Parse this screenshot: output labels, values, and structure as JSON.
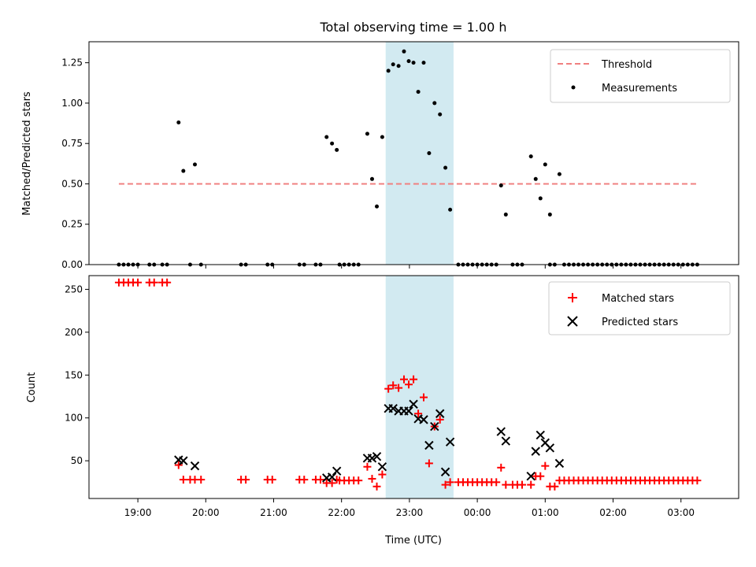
{
  "chart_data": [
    {
      "type": "scatter",
      "title": "Total observing time = 1.00 h",
      "xlabel": "",
      "ylabel": "Matched/Predicted stars",
      "x_unit": "hours since 18:00 UTC",
      "xlim": [
        0.28,
        9.85
      ],
      "ylim": [
        0,
        1.38
      ],
      "yticks": [
        0.0,
        0.25,
        0.5,
        0.75,
        1.0,
        1.25
      ],
      "ytick_labels": [
        "0.00",
        "0.25",
        "0.50",
        "0.75",
        "1.00",
        "1.25"
      ],
      "highlight": {
        "x0": 4.65,
        "x1": 5.65,
        "color": "#add8e6"
      },
      "legend": {
        "position": "top-right",
        "entries": [
          "Threshold",
          "Measurements"
        ]
      },
      "threshold": {
        "name": "Threshold",
        "x0": 0.72,
        "x1": 9.25,
        "y": 0.5,
        "color": "#f08080"
      },
      "series": [
        {
          "name": "Measurements",
          "color": "#000000",
          "points": [
            [
              0.72,
              0
            ],
            [
              0.79,
              0
            ],
            [
              0.86,
              0
            ],
            [
              0.93,
              0
            ],
            [
              1.0,
              0
            ],
            [
              1.17,
              0
            ],
            [
              1.24,
              0
            ],
            [
              1.36,
              0
            ],
            [
              1.43,
              0
            ],
            [
              1.6,
              0.88
            ],
            [
              1.67,
              0.58
            ],
            [
              1.77,
              0
            ],
            [
              1.84,
              0.62
            ],
            [
              1.93,
              0
            ],
            [
              2.52,
              0
            ],
            [
              2.59,
              0
            ],
            [
              2.91,
              0
            ],
            [
              2.98,
              0
            ],
            [
              3.38,
              0
            ],
            [
              3.45,
              0
            ],
            [
              3.62,
              0
            ],
            [
              3.69,
              0
            ],
            [
              3.78,
              0.79
            ],
            [
              3.86,
              0.75
            ],
            [
              3.93,
              0.71
            ],
            [
              3.97,
              0
            ],
            [
              4.04,
              0
            ],
            [
              4.11,
              0
            ],
            [
              4.18,
              0
            ],
            [
              4.25,
              0
            ],
            [
              4.38,
              0.81
            ],
            [
              4.45,
              0.53
            ],
            [
              4.52,
              0.36
            ],
            [
              4.6,
              0.79
            ],
            [
              4.69,
              1.2
            ],
            [
              4.76,
              1.24
            ],
            [
              4.84,
              1.23
            ],
            [
              4.92,
              1.32
            ],
            [
              4.99,
              1.26
            ],
            [
              5.06,
              1.25
            ],
            [
              5.13,
              1.07
            ],
            [
              5.21,
              1.25
            ],
            [
              5.29,
              0.69
            ],
            [
              5.37,
              1.0
            ],
            [
              5.45,
              0.93
            ],
            [
              5.53,
              0.6
            ],
            [
              5.6,
              0.34
            ],
            [
              5.72,
              0
            ],
            [
              5.79,
              0
            ],
            [
              5.86,
              0
            ],
            [
              5.93,
              0
            ],
            [
              6.0,
              0
            ],
            [
              6.07,
              0
            ],
            [
              6.14,
              0
            ],
            [
              6.21,
              0
            ],
            [
              6.28,
              0
            ],
            [
              6.35,
              0.49
            ],
            [
              6.42,
              0.31
            ],
            [
              6.52,
              0
            ],
            [
              6.59,
              0
            ],
            [
              6.66,
              0
            ],
            [
              6.79,
              0.67
            ],
            [
              6.86,
              0.53
            ],
            [
              6.93,
              0.41
            ],
            [
              7.0,
              0.62
            ],
            [
              7.07,
              0.31
            ],
            [
              7.07,
              0
            ],
            [
              7.14,
              0
            ],
            [
              7.21,
              0.56
            ],
            [
              7.28,
              0
            ],
            [
              7.35,
              0
            ],
            [
              7.42,
              0
            ],
            [
              7.49,
              0
            ],
            [
              7.56,
              0
            ],
            [
              7.63,
              0
            ],
            [
              7.7,
              0
            ],
            [
              7.77,
              0
            ],
            [
              7.84,
              0
            ],
            [
              7.91,
              0
            ],
            [
              7.98,
              0
            ],
            [
              8.05,
              0
            ],
            [
              8.12,
              0
            ],
            [
              8.19,
              0
            ],
            [
              8.26,
              0
            ],
            [
              8.33,
              0
            ],
            [
              8.4,
              0
            ],
            [
              8.47,
              0
            ],
            [
              8.54,
              0
            ],
            [
              8.61,
              0
            ],
            [
              8.68,
              0
            ],
            [
              8.75,
              0
            ],
            [
              8.82,
              0
            ],
            [
              8.89,
              0
            ],
            [
              8.96,
              0
            ],
            [
              9.03,
              0
            ],
            [
              9.1,
              0
            ],
            [
              9.17,
              0
            ],
            [
              9.24,
              0
            ]
          ]
        }
      ]
    },
    {
      "type": "scatter",
      "title": "",
      "xlabel": "Time (UTC)",
      "ylabel": "Count",
      "x_unit": "hours since 18:00 UTC",
      "xlim": [
        0.28,
        9.85
      ],
      "ylim": [
        6,
        266
      ],
      "yticks": [
        50,
        100,
        150,
        200,
        250
      ],
      "ytick_labels": [
        "50",
        "100",
        "150",
        "200",
        "250"
      ],
      "xticks": [
        1,
        2,
        3,
        4,
        5,
        6,
        7,
        8,
        9
      ],
      "xtick_labels": [
        "19:00",
        "20:00",
        "21:00",
        "22:00",
        "23:00",
        "00:00",
        "01:00",
        "02:00",
        "03:00"
      ],
      "highlight": {
        "x0": 4.65,
        "x1": 5.65,
        "color": "#add8e6"
      },
      "legend": {
        "position": "top-right",
        "entries": [
          "Matched stars",
          "Predicted stars"
        ]
      },
      "series": [
        {
          "name": "Matched stars",
          "marker": "plus",
          "color": "#ff0000",
          "points": [
            [
              0.72,
              258
            ],
            [
              0.79,
              258
            ],
            [
              0.86,
              258
            ],
            [
              0.93,
              258
            ],
            [
              1.0,
              258
            ],
            [
              1.17,
              258
            ],
            [
              1.24,
              258
            ],
            [
              1.36,
              258
            ],
            [
              1.43,
              258
            ],
            [
              1.6,
              45
            ],
            [
              1.67,
              28
            ],
            [
              1.77,
              28
            ],
            [
              1.84,
              28
            ],
            [
              1.93,
              28
            ],
            [
              2.52,
              28
            ],
            [
              2.59,
              28
            ],
            [
              2.91,
              28
            ],
            [
              2.98,
              28
            ],
            [
              3.38,
              28
            ],
            [
              3.45,
              28
            ],
            [
              3.62,
              28
            ],
            [
              3.69,
              28
            ],
            [
              3.78,
              24
            ],
            [
              3.86,
              24
            ],
            [
              3.93,
              28
            ],
            [
              3.97,
              27
            ],
            [
              4.04,
              27
            ],
            [
              4.11,
              27
            ],
            [
              4.18,
              27
            ],
            [
              4.25,
              27
            ],
            [
              4.38,
              43
            ],
            [
              4.45,
              29
            ],
            [
              4.52,
              20
            ],
            [
              4.6,
              34
            ],
            [
              4.69,
              134
            ],
            [
              4.76,
              138
            ],
            [
              4.84,
              135
            ],
            [
              4.92,
              145
            ],
            [
              4.99,
              139
            ],
            [
              5.06,
              145
            ],
            [
              5.13,
              105
            ],
            [
              5.21,
              124
            ],
            [
              5.29,
              47
            ],
            [
              5.37,
              90
            ],
            [
              5.45,
              98
            ],
            [
              5.53,
              22
            ],
            [
              5.6,
              25
            ],
            [
              5.72,
              25
            ],
            [
              5.79,
              25
            ],
            [
              5.86,
              25
            ],
            [
              5.93,
              25
            ],
            [
              6.0,
              25
            ],
            [
              6.07,
              25
            ],
            [
              6.14,
              25
            ],
            [
              6.21,
              25
            ],
            [
              6.28,
              25
            ],
            [
              6.35,
              42
            ],
            [
              6.42,
              22
            ],
            [
              6.52,
              22
            ],
            [
              6.59,
              22
            ],
            [
              6.66,
              22
            ],
            [
              6.79,
              22
            ],
            [
              6.86,
              32
            ],
            [
              6.93,
              32
            ],
            [
              7.0,
              44
            ],
            [
              7.07,
              20
            ],
            [
              7.14,
              20
            ],
            [
              7.21,
              27
            ],
            [
              7.28,
              27
            ],
            [
              7.35,
              27
            ],
            [
              7.42,
              27
            ],
            [
              7.49,
              27
            ],
            [
              7.56,
              27
            ],
            [
              7.63,
              27
            ],
            [
              7.7,
              27
            ],
            [
              7.77,
              27
            ],
            [
              7.84,
              27
            ],
            [
              7.91,
              27
            ],
            [
              7.98,
              27
            ],
            [
              8.05,
              27
            ],
            [
              8.12,
              27
            ],
            [
              8.19,
              27
            ],
            [
              8.26,
              27
            ],
            [
              8.33,
              27
            ],
            [
              8.4,
              27
            ],
            [
              8.47,
              27
            ],
            [
              8.54,
              27
            ],
            [
              8.61,
              27
            ],
            [
              8.68,
              27
            ],
            [
              8.75,
              27
            ],
            [
              8.82,
              27
            ],
            [
              8.89,
              27
            ],
            [
              8.96,
              27
            ],
            [
              9.03,
              27
            ],
            [
              9.1,
              27
            ],
            [
              9.17,
              27
            ],
            [
              9.24,
              27
            ]
          ]
        },
        {
          "name": "Predicted stars",
          "marker": "x",
          "color": "#000000",
          "points": [
            [
              1.6,
              51
            ],
            [
              1.67,
              50
            ],
            [
              1.84,
              44
            ],
            [
              3.78,
              30
            ],
            [
              3.86,
              31
            ],
            [
              3.93,
              38
            ],
            [
              4.38,
              53
            ],
            [
              4.45,
              53
            ],
            [
              4.52,
              55
            ],
            [
              4.6,
              43
            ],
            [
              4.69,
              111
            ],
            [
              4.76,
              111
            ],
            [
              4.84,
              108
            ],
            [
              4.92,
              108
            ],
            [
              4.99,
              108
            ],
            [
              5.06,
              116
            ],
            [
              5.13,
              99
            ],
            [
              5.21,
              98
            ],
            [
              5.29,
              68
            ],
            [
              5.37,
              90
            ],
            [
              5.45,
              105
            ],
            [
              5.53,
              37
            ],
            [
              5.6,
              72
            ],
            [
              6.35,
              84
            ],
            [
              6.42,
              73
            ],
            [
              6.79,
              32
            ],
            [
              6.86,
              61
            ],
            [
              6.93,
              80
            ],
            [
              7.0,
              71
            ],
            [
              7.07,
              65
            ],
            [
              7.21,
              47
            ]
          ]
        }
      ]
    }
  ]
}
